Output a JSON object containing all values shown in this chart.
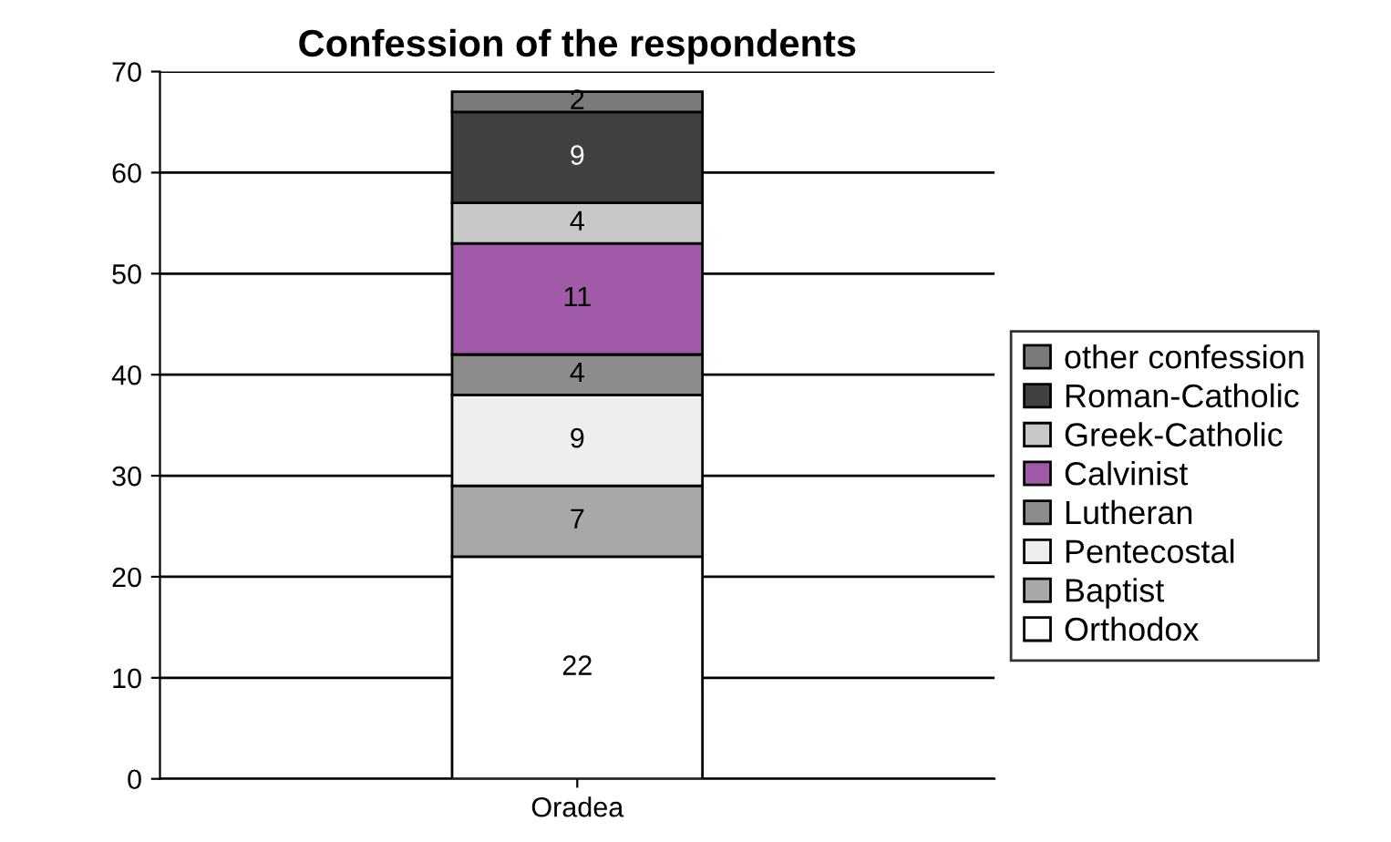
{
  "chart_data": {
    "type": "bar",
    "title": "Confession of the respondents",
    "categories": [
      "Oradea"
    ],
    "stacked": true,
    "series": [
      {
        "name": "Orthodox",
        "color": "#ffffff",
        "values": [
          22
        ]
      },
      {
        "name": "Baptist",
        "color": "#a8a8a8",
        "values": [
          7
        ]
      },
      {
        "name": "Pentecostal",
        "color": "#eeeeee",
        "values": [
          9
        ]
      },
      {
        "name": "Lutheran",
        "color": "#8c8c8c",
        "values": [
          4
        ]
      },
      {
        "name": "Calvinist",
        "color": "#a05aa8",
        "values": [
          11
        ]
      },
      {
        "name": "Greek-Catholic",
        "color": "#c8c8c8",
        "values": [
          4
        ]
      },
      {
        "name": "Roman-Catholic",
        "color": "#404040",
        "values": [
          9
        ]
      },
      {
        "name": "other confession",
        "color": "#7a7a7a",
        "values": [
          2
        ]
      }
    ],
    "ylim": [
      0,
      70
    ],
    "yticks": [
      0,
      10,
      20,
      30,
      40,
      50,
      60,
      70
    ],
    "grid": "y",
    "legend": "right",
    "data_labels": true
  }
}
